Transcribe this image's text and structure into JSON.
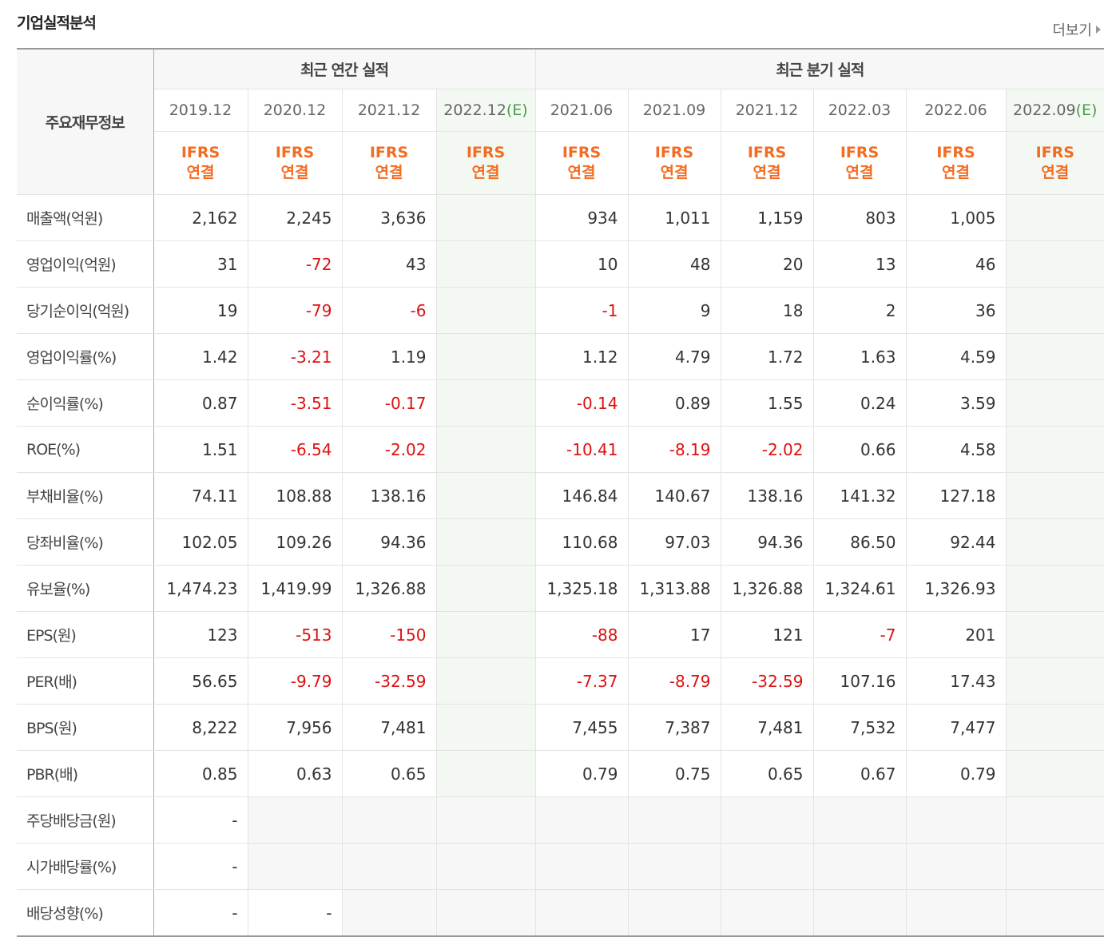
{
  "header": {
    "title": "기업실적분석",
    "more": "더보기"
  },
  "table": {
    "corner": "주요재무정보",
    "column_groups": [
      {
        "title": "최근 연간 실적",
        "columns": [
          {
            "date": "2019.12",
            "standard": "IFRS",
            "basis": "연결"
          },
          {
            "date": "2020.12",
            "standard": "IFRS",
            "basis": "연결"
          },
          {
            "date": "2021.12",
            "standard": "IFRS",
            "basis": "연결"
          },
          {
            "date": "2022.12",
            "estimate": "(E)",
            "standard": "IFRS",
            "basis": "연결"
          }
        ]
      },
      {
        "title": "최근 분기 실적",
        "columns": [
          {
            "date": "2021.06",
            "standard": "IFRS",
            "basis": "연결"
          },
          {
            "date": "2021.09",
            "standard": "IFRS",
            "basis": "연결"
          },
          {
            "date": "2021.12",
            "standard": "IFRS",
            "basis": "연결"
          },
          {
            "date": "2022.03",
            "standard": "IFRS",
            "basis": "연결"
          },
          {
            "date": "2022.06",
            "standard": "IFRS",
            "basis": "연결"
          },
          {
            "date": "2022.09",
            "estimate": "(E)",
            "standard": "IFRS",
            "basis": "연결"
          }
        ]
      }
    ],
    "row_groups": [
      [
        {
          "label": "매출액(억원)",
          "values": [
            "2,162",
            "2,245",
            "3,636",
            null,
            "934",
            "1,011",
            "1,159",
            "803",
            "1,005",
            null
          ]
        },
        {
          "label": "영업이익(억원)",
          "values": [
            "31",
            "-72",
            "43",
            null,
            "10",
            "48",
            "20",
            "13",
            "46",
            null
          ]
        },
        {
          "label": "당기순이익(억원)",
          "values": [
            "19",
            "-79",
            "-6",
            null,
            "-1",
            "9",
            "18",
            "2",
            "36",
            null
          ]
        }
      ],
      [
        {
          "label": "영업이익률(%)",
          "values": [
            "1.42",
            "-3.21",
            "1.19",
            null,
            "1.12",
            "4.79",
            "1.72",
            "1.63",
            "4.59",
            null
          ]
        },
        {
          "label": "순이익률(%)",
          "values": [
            "0.87",
            "-3.51",
            "-0.17",
            null,
            "-0.14",
            "0.89",
            "1.55",
            "0.24",
            "3.59",
            null
          ]
        },
        {
          "label": "ROE(%)",
          "values": [
            "1.51",
            "-6.54",
            "-2.02",
            null,
            "-10.41",
            "-8.19",
            "-2.02",
            "0.66",
            "4.58",
            null
          ]
        }
      ],
      [
        {
          "label": "부채비율(%)",
          "values": [
            "74.11",
            "108.88",
            "138.16",
            null,
            "146.84",
            "140.67",
            "138.16",
            "141.32",
            "127.18",
            null
          ]
        },
        {
          "label": "당좌비율(%)",
          "values": [
            "102.05",
            "109.26",
            "94.36",
            null,
            "110.68",
            "97.03",
            "94.36",
            "86.50",
            "92.44",
            null
          ]
        },
        {
          "label": "유보율(%)",
          "values": [
            "1,474.23",
            "1,419.99",
            "1,326.88",
            null,
            "1,325.18",
            "1,313.88",
            "1,326.88",
            "1,324.61",
            "1,326.93",
            null
          ]
        }
      ],
      [
        {
          "label": "EPS(원)",
          "values": [
            "123",
            "-513",
            "-150",
            null,
            "-88",
            "17",
            "121",
            "-7",
            "201",
            null
          ]
        },
        {
          "label": "PER(배)",
          "values": [
            "56.65",
            "-9.79",
            "-32.59",
            null,
            "-7.37",
            "-8.79",
            "-32.59",
            "107.16",
            "17.43",
            null
          ]
        },
        {
          "label": "BPS(원)",
          "values": [
            "8,222",
            "7,956",
            "7,481",
            null,
            "7,455",
            "7,387",
            "7,481",
            "7,532",
            "7,477",
            null
          ]
        },
        {
          "label": "PBR(배)",
          "values": [
            "0.85",
            "0.63",
            "0.65",
            null,
            "0.79",
            "0.75",
            "0.65",
            "0.67",
            "0.79",
            null
          ]
        }
      ],
      [
        {
          "label": "주당배당금(원)",
          "values": [
            "-",
            null,
            null,
            null,
            null,
            null,
            null,
            null,
            null,
            null
          ]
        },
        {
          "label": "시가배당률(%)",
          "values": [
            "-",
            null,
            null,
            null,
            null,
            null,
            null,
            null,
            null,
            null
          ]
        },
        {
          "label": "배당성향(%)",
          "values": [
            "-",
            "-",
            null,
            null,
            null,
            null,
            null,
            null,
            null,
            null
          ]
        }
      ]
    ]
  }
}
